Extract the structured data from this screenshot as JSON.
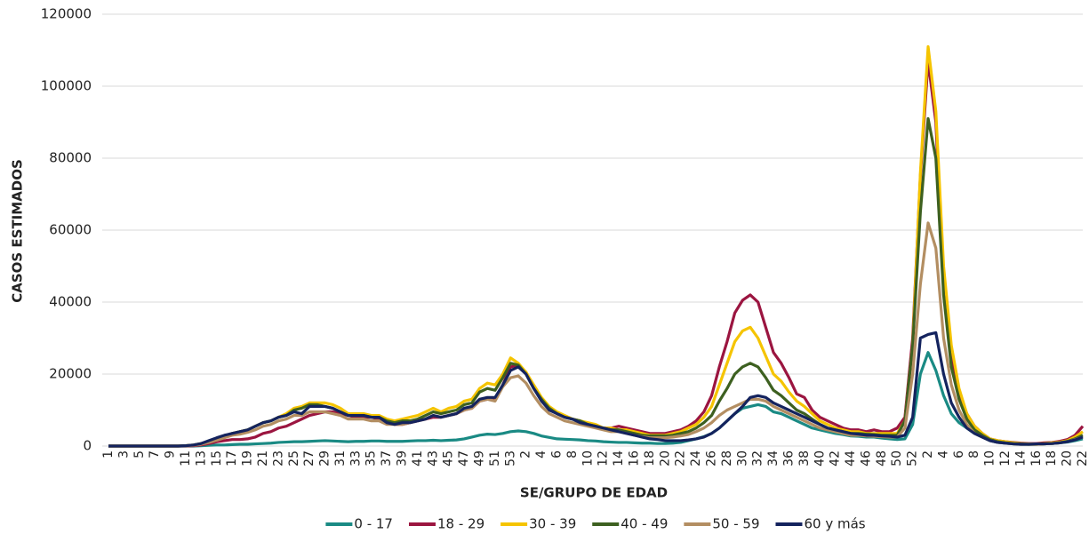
{
  "chart_data": {
    "type": "line",
    "y_label": "CASOS ESTIMADOS",
    "x_label": "SE/GRUPO DE EDAD",
    "categories": [
      "1",
      null,
      "3",
      null,
      "5",
      null,
      "7",
      null,
      "9",
      null,
      "11",
      null,
      "13",
      null,
      "15",
      null,
      "17",
      null,
      "19",
      null,
      "21",
      null,
      "23",
      null,
      "25",
      null,
      "27",
      null,
      "29",
      null,
      "31",
      null,
      "33",
      null,
      "35",
      null,
      "37",
      null,
      "39",
      null,
      "41",
      null,
      "43",
      null,
      "45",
      null,
      "47",
      null,
      "49",
      null,
      "51",
      null,
      "53",
      null,
      "2",
      null,
      "4",
      null,
      "6",
      null,
      "8",
      null,
      "10",
      null,
      "12",
      null,
      "14",
      null,
      "16",
      null,
      "18",
      null,
      "20",
      null,
      "22",
      null,
      "24",
      null,
      "26",
      null,
      "28",
      null,
      "30",
      null,
      "32",
      null,
      "34",
      null,
      "36",
      null,
      "38",
      null,
      "40",
      null,
      "42",
      null,
      "44",
      null,
      "46",
      null,
      "48",
      null,
      "50",
      null,
      "52",
      null,
      "2",
      null,
      "4",
      null,
      "6",
      null,
      "8",
      null,
      "10",
      null,
      "12",
      null,
      "14",
      null,
      "16",
      null,
      "18",
      null,
      "20",
      null,
      "22"
    ],
    "ylim": [
      0,
      120000
    ],
    "yticks": [
      0,
      20000,
      40000,
      60000,
      80000,
      100000,
      120000
    ],
    "grid": true,
    "legend": "bottom",
    "series": [
      {
        "name": "0 - 17",
        "color": "#1a8a84",
        "values": [
          0,
          0,
          0,
          0,
          0,
          0,
          0,
          0,
          0,
          0,
          0,
          0,
          100,
          200,
          300,
          300,
          400,
          500,
          500,
          600,
          700,
          800,
          1000,
          1100,
          1200,
          1200,
          1300,
          1400,
          1500,
          1400,
          1300,
          1200,
          1300,
          1300,
          1400,
          1400,
          1300,
          1300,
          1300,
          1400,
          1500,
          1500,
          1600,
          1500,
          1600,
          1700,
          2000,
          2500,
          3000,
          3300,
          3200,
          3500,
          4000,
          4200,
          4000,
          3500,
          2800,
          2400,
          2000,
          1900,
          1800,
          1700,
          1500,
          1400,
          1200,
          1100,
          1000,
          1000,
          900,
          800,
          800,
          700,
          700,
          800,
          1000,
          1500,
          2000,
          2600,
          3500,
          5000,
          7000,
          9000,
          10500,
          11000,
          11500,
          11000,
          9500,
          9000,
          8000,
          7000,
          6000,
          5000,
          4500,
          4000,
          3500,
          3200,
          2800,
          2700,
          2500,
          2500,
          2200,
          2000,
          1800,
          2000,
          6000,
          20000,
          26000,
          21000,
          14000,
          9000,
          6500,
          5000,
          3500,
          2500,
          1500,
          1000,
          800,
          600,
          500,
          500,
          500,
          600,
          700,
          900,
          1100,
          1500,
          2000
        ]
      },
      {
        "name": "18 - 29",
        "color": "#9b1540",
        "values": [
          0,
          0,
          0,
          0,
          0,
          0,
          0,
          0,
          0,
          0,
          0,
          100,
          300,
          700,
          1200,
          1500,
          1800,
          1800,
          2000,
          2500,
          3500,
          4000,
          5000,
          5500,
          6500,
          7500,
          8500,
          9000,
          9500,
          9500,
          9000,
          8500,
          8000,
          8000,
          8000,
          7500,
          6500,
          6000,
          6000,
          6500,
          7000,
          7500,
          8000,
          8000,
          8500,
          9000,
          10000,
          10500,
          12500,
          13000,
          13000,
          17000,
          22000,
          22500,
          20500,
          16500,
          13000,
          10500,
          9000,
          8000,
          7500,
          7000,
          6000,
          5500,
          5000,
          5000,
          5500,
          5000,
          4500,
          4000,
          3500,
          3500,
          3500,
          4000,
          4500,
          5500,
          7000,
          9500,
          14000,
          22000,
          29000,
          37000,
          40500,
          42000,
          40000,
          33000,
          26000,
          23000,
          19000,
          14500,
          13500,
          10000,
          8000,
          7000,
          6000,
          5000,
          4500,
          4500,
          4000,
          4500,
          4000,
          4000,
          5000,
          8000,
          30000,
          75000,
          107000,
          90000,
          45000,
          25000,
          15000,
          9000,
          5500,
          3500,
          2000,
          1500,
          1200,
          1000,
          800,
          700,
          700,
          900,
          1000,
          1300,
          1800,
          3000,
          5500
        ]
      },
      {
        "name": "30 - 39",
        "color": "#f5c400",
        "values": [
          0,
          0,
          0,
          0,
          0,
          0,
          0,
          0,
          0,
          0,
          100,
          300,
          700,
          1300,
          2000,
          2800,
          3500,
          4000,
          4500,
          5500,
          6500,
          7000,
          8000,
          9000,
          10500,
          11000,
          12000,
          12000,
          12000,
          11500,
          10500,
          9000,
          9000,
          9000,
          8500,
          8500,
          7500,
          7000,
          7500,
          8000,
          8500,
          9500,
          10500,
          9500,
          10500,
          11000,
          12500,
          13000,
          16000,
          17500,
          17000,
          20000,
          24500,
          23000,
          20500,
          17000,
          13500,
          11000,
          9500,
          8500,
          7500,
          7000,
          6500,
          6000,
          5000,
          5000,
          4500,
          4500,
          4000,
          3500,
          3000,
          3000,
          3000,
          3500,
          4000,
          5000,
          6000,
          8000,
          11000,
          17000,
          23000,
          29000,
          32000,
          33000,
          30000,
          25000,
          20000,
          18000,
          15000,
          12500,
          11000,
          9000,
          7000,
          6000,
          5000,
          4500,
          4000,
          4000,
          3500,
          3500,
          3500,
          3500,
          3500,
          7000,
          28000,
          76000,
          111000,
          93000,
          50000,
          28000,
          16000,
          9000,
          5500,
          3500,
          2000,
          1500,
          1200,
          900,
          700,
          600,
          600,
          700,
          900,
          1100,
          1500,
          2500,
          4000
        ]
      },
      {
        "name": "40 - 49",
        "color": "#3d6020",
        "values": [
          0,
          0,
          0,
          0,
          0,
          0,
          0,
          0,
          0,
          0,
          100,
          300,
          700,
          1300,
          2000,
          2800,
          3500,
          4000,
          4500,
          5500,
          6500,
          7000,
          8000,
          8500,
          10000,
          10500,
          11500,
          11500,
          11000,
          10500,
          9500,
          8500,
          8500,
          8500,
          8000,
          8000,
          7000,
          6500,
          7000,
          7000,
          7500,
          8500,
          9500,
          9000,
          9500,
          10000,
          11500,
          12000,
          15000,
          16000,
          15500,
          19000,
          23000,
          22500,
          20000,
          16000,
          13000,
          10500,
          9000,
          8000,
          7500,
          7000,
          6000,
          5500,
          5000,
          4500,
          4500,
          4000,
          3500,
          3000,
          2800,
          2800,
          2800,
          3000,
          3500,
          4000,
          5000,
          6500,
          8500,
          12500,
          16000,
          20000,
          22000,
          23000,
          22000,
          19000,
          15500,
          14000,
          12000,
          10000,
          9000,
          7500,
          6000,
          5000,
          4500,
          4000,
          3500,
          3500,
          3300,
          3200,
          3000,
          3000,
          3000,
          7000,
          28000,
          65000,
          91000,
          80000,
          42000,
          22000,
          13000,
          7500,
          4500,
          3000,
          1800,
          1200,
          900,
          700,
          600,
          500,
          500,
          600,
          700,
          900,
          1300,
          2000,
          3000
        ]
      },
      {
        "name": "50 - 59",
        "color": "#b38e62",
        "values": [
          0,
          0,
          0,
          0,
          0,
          0,
          0,
          0,
          0,
          0,
          50,
          200,
          500,
          1000,
          1600,
          2300,
          3000,
          3300,
          3800,
          4500,
          5500,
          6000,
          7000,
          7500,
          8500,
          8500,
          9500,
          9500,
          9500,
          9000,
          8500,
          7500,
          7500,
          7500,
          7000,
          7000,
          6000,
          6000,
          6000,
          6500,
          7000,
          7500,
          8500,
          8000,
          8500,
          9000,
          10000,
          10500,
          12500,
          13000,
          12500,
          16500,
          19000,
          19500,
          17500,
          14000,
          11000,
          9000,
          8000,
          7000,
          6500,
          6000,
          5500,
          5000,
          4500,
          4000,
          4000,
          3500,
          3000,
          2600,
          2300,
          2300,
          2300,
          2500,
          2800,
          3200,
          4000,
          5000,
          6500,
          8500,
          10000,
          11000,
          12000,
          13000,
          13000,
          12500,
          11000,
          10000,
          9000,
          8000,
          7000,
          6000,
          5000,
          4500,
          4000,
          3500,
          3000,
          3000,
          2800,
          2700,
          2600,
          2500,
          2500,
          5000,
          20000,
          45000,
          62000,
          55000,
          30000,
          17000,
          10000,
          6000,
          3500,
          2500,
          1500,
          1000,
          800,
          600,
          500,
          500,
          500,
          600,
          700,
          900,
          1200,
          1800,
          2500
        ]
      },
      {
        "name": "60 y más",
        "color": "#14235e",
        "values": [
          0,
          0,
          0,
          0,
          0,
          0,
          0,
          0,
          0,
          0,
          100,
          300,
          700,
          1500,
          2300,
          3000,
          3500,
          4000,
          4500,
          5500,
          6500,
          7000,
          8000,
          8500,
          9500,
          9000,
          11000,
          11000,
          11000,
          10500,
          9500,
          8500,
          8500,
          8500,
          8000,
          8000,
          6500,
          6000,
          6500,
          6500,
          7000,
          7500,
          8500,
          8000,
          8500,
          9000,
          10500,
          11000,
          13000,
          13500,
          13500,
          17000,
          21000,
          22000,
          20000,
          16000,
          12500,
          10000,
          9000,
          8000,
          7500,
          6500,
          6000,
          5500,
          5000,
          4500,
          4000,
          3500,
          3000,
          2500,
          2000,
          1800,
          1500,
          1500,
          1500,
          1700,
          2000,
          2500,
          3500,
          5000,
          7000,
          9000,
          11000,
          13500,
          14000,
          13500,
          12000,
          11000,
          10000,
          9000,
          8000,
          7000,
          6000,
          5000,
          4500,
          4000,
          3500,
          3300,
          3000,
          3000,
          2800,
          2700,
          2500,
          3000,
          8000,
          30000,
          31000,
          31500,
          20000,
          12000,
          8000,
          5000,
          3500,
          2500,
          1500,
          1000,
          800,
          600,
          500,
          500,
          600,
          600,
          700,
          900,
          1200,
          1700,
          2500
        ]
      }
    ]
  }
}
